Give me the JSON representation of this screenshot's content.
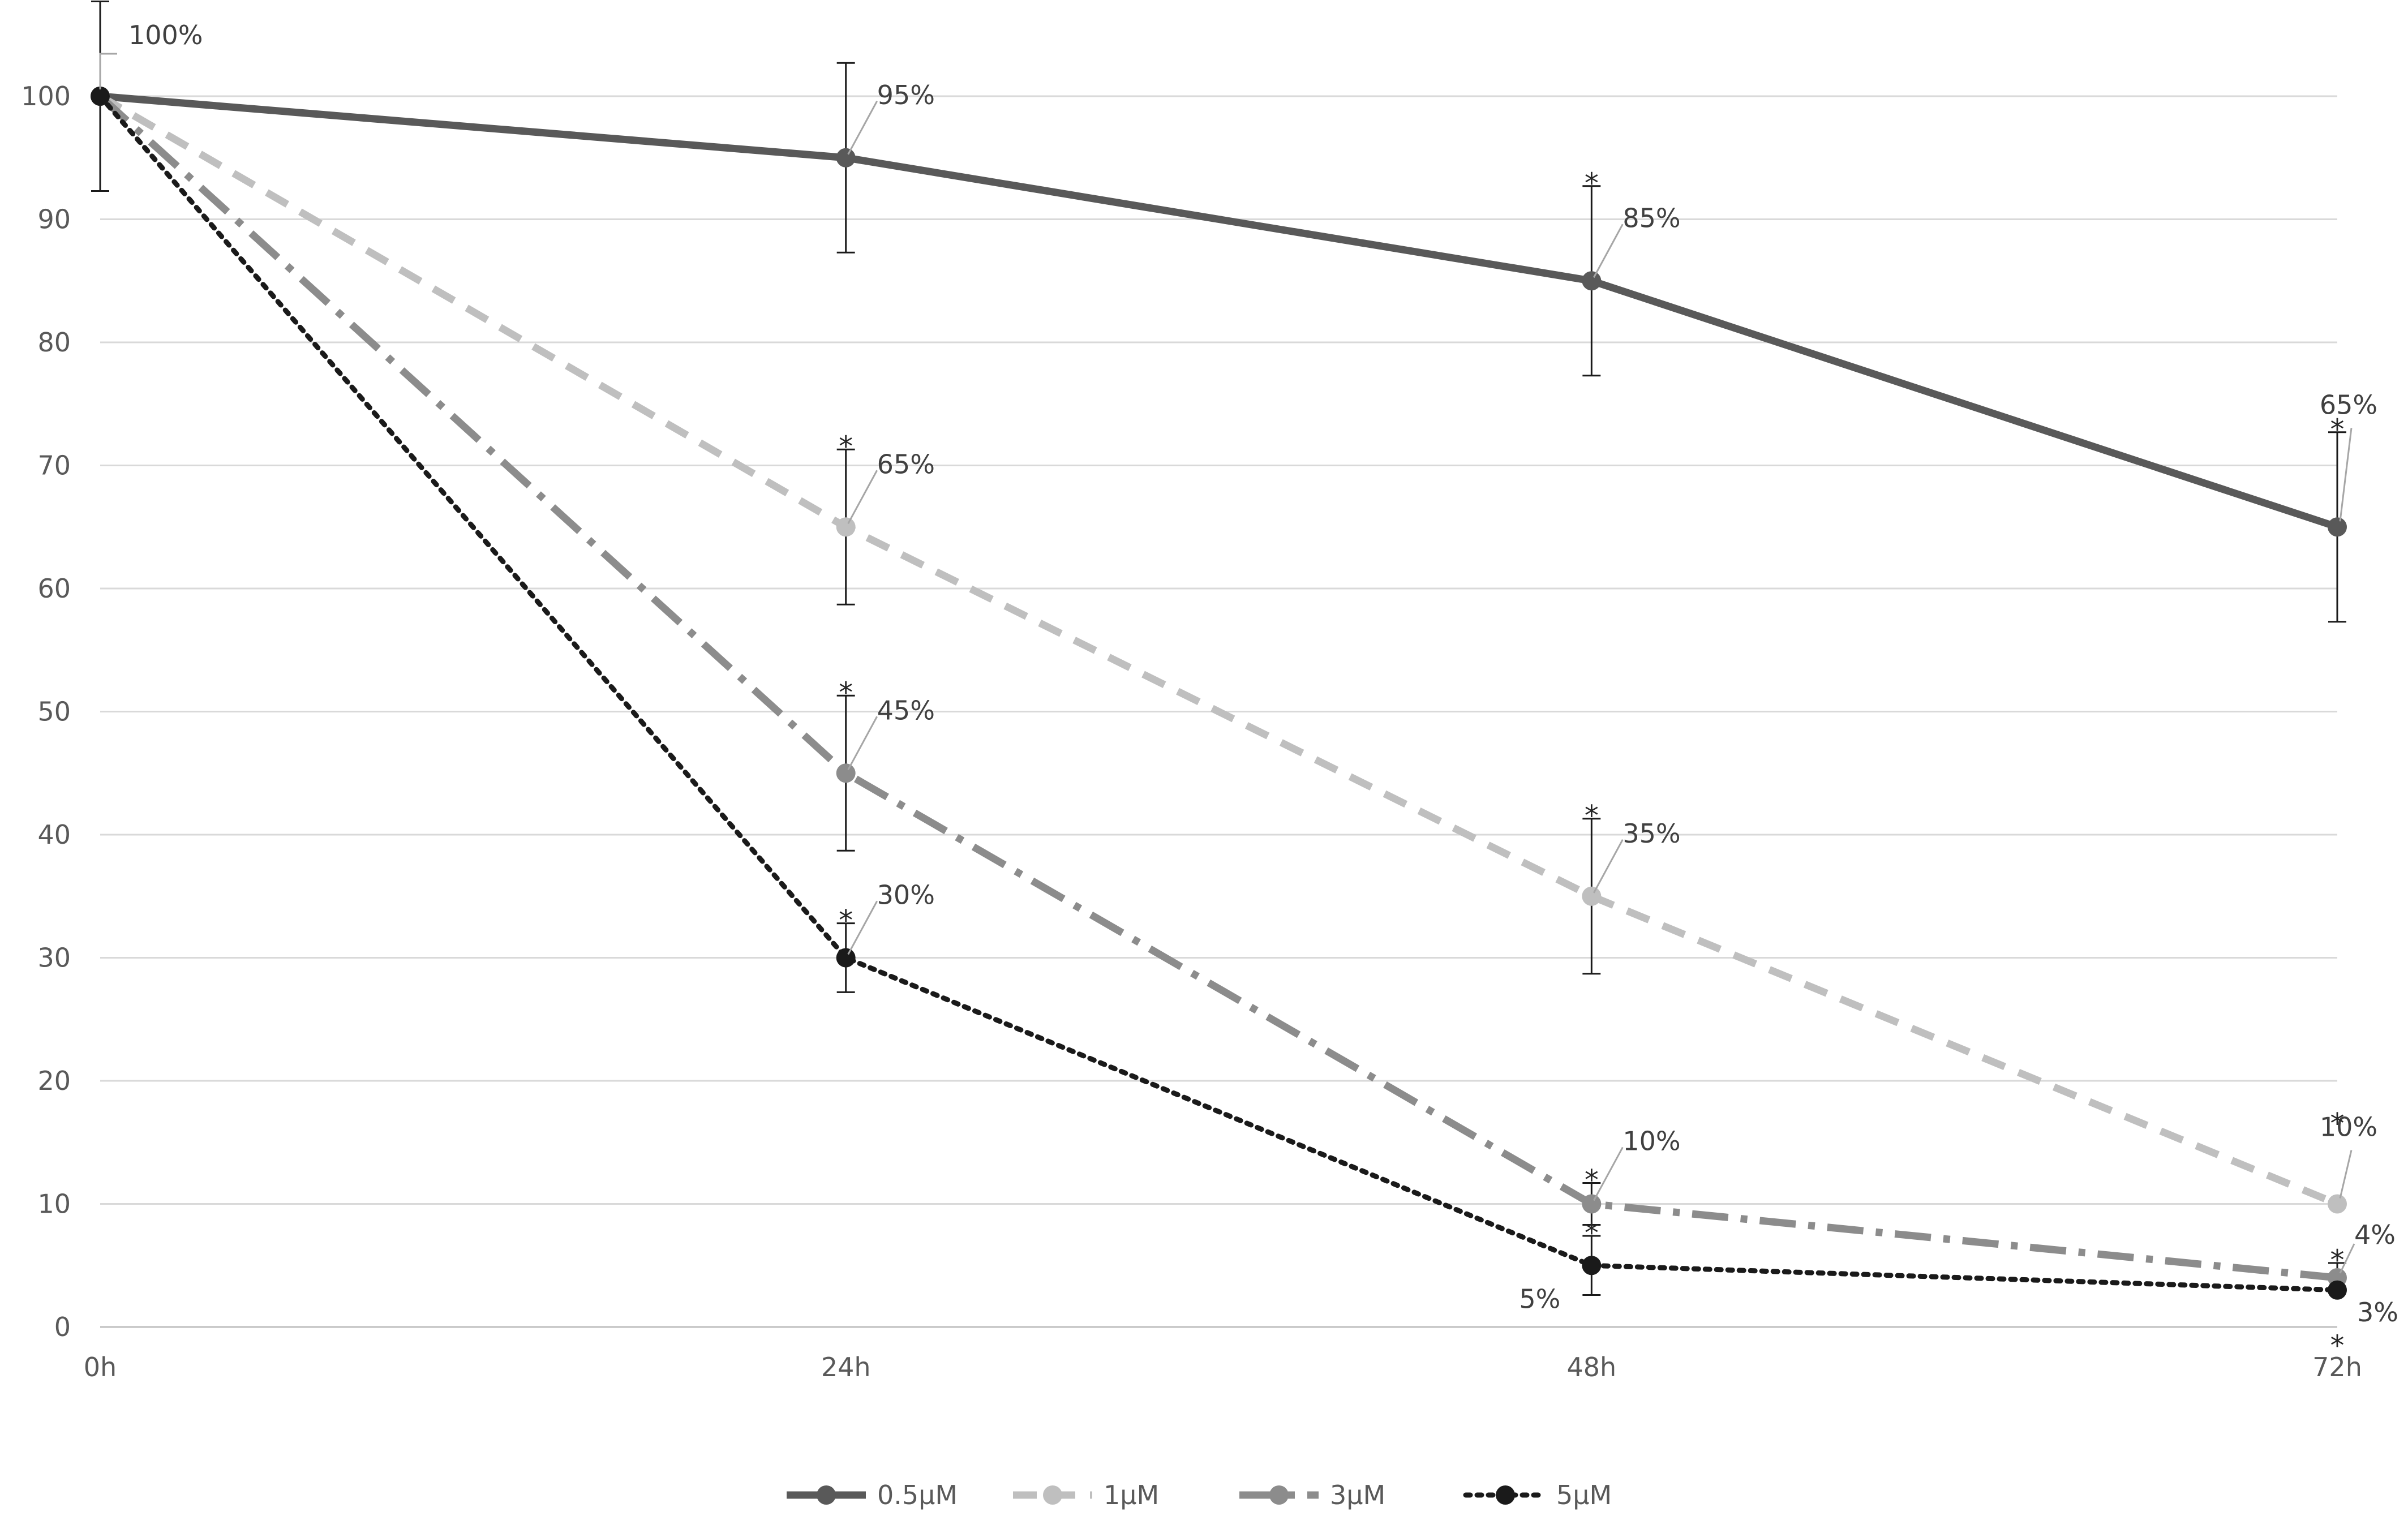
{
  "chart_data": {
    "type": "line",
    "title": "",
    "xlabel": "",
    "ylabel": "",
    "categories": [
      "0h",
      "24h",
      "48h",
      "72h"
    ],
    "ylim": [
      0,
      100
    ],
    "yticks": [
      "0",
      "10",
      "20",
      "30",
      "40",
      "50",
      "60",
      "70",
      "80",
      "90",
      "100"
    ],
    "grid": true,
    "legend_position": "bottom",
    "series": [
      {
        "name": "0.5μM",
        "values": [
          100,
          95,
          85,
          65
        ],
        "errors": [
          7.7,
          7.7,
          7.7,
          7.7
        ],
        "labels": [
          "100%",
          "95%",
          "85%",
          "65%"
        ],
        "significant": [
          false,
          false,
          true,
          true
        ],
        "color": "#595959",
        "dash": "solid"
      },
      {
        "name": "1μM",
        "values": [
          100,
          65,
          35,
          10
        ],
        "errors": [
          0,
          6.3,
          6.3,
          0
        ],
        "labels": [
          "",
          "65%",
          "35%",
          "10%"
        ],
        "significant": [
          false,
          true,
          true,
          true
        ],
        "color": "#bfbfbf",
        "dash": "dash"
      },
      {
        "name": "3μM",
        "values": [
          100,
          45,
          10,
          4
        ],
        "errors": [
          0,
          6.3,
          1.7,
          1.2
        ],
        "labels": [
          "",
          "45%",
          "10%",
          "4%"
        ],
        "significant": [
          false,
          true,
          true,
          true
        ],
        "color": "#8c8c8c",
        "dash": "dashdot"
      },
      {
        "name": "5μM",
        "values": [
          100,
          30,
          5,
          3
        ],
        "errors": [
          0,
          2.8,
          2.4,
          0
        ],
        "labels": [
          "",
          "30%",
          "5%",
          "3%"
        ],
        "significant": [
          false,
          true,
          true,
          true
        ],
        "color": "#1a1a1a",
        "dash": "dot"
      }
    ]
  }
}
